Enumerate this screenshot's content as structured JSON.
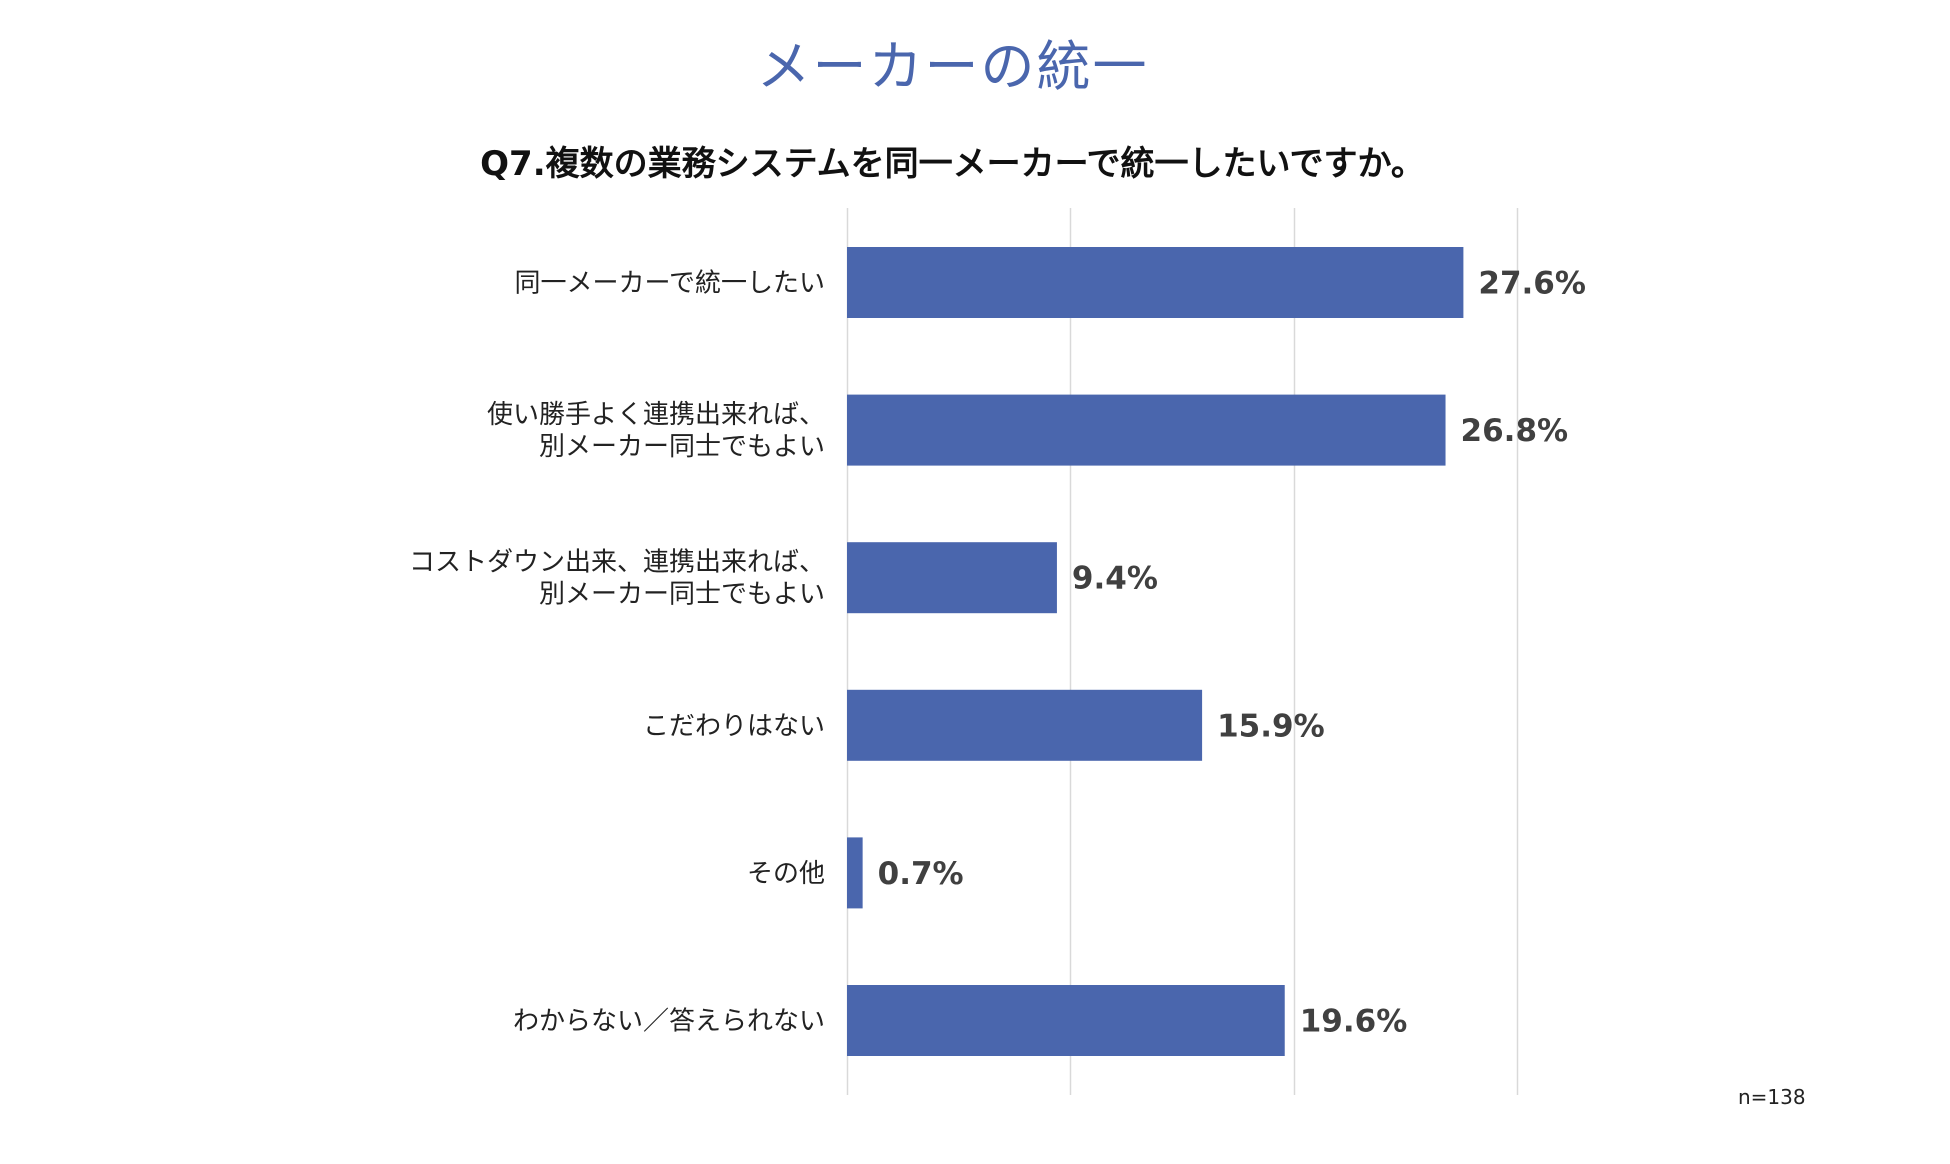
{
  "page": {
    "title": "メーカーの統一",
    "sample_size": "n=138"
  },
  "colors": {
    "title": "#4a66ad",
    "bar": "#4a66ad",
    "grid": "#d9d9d9"
  },
  "chart_data": {
    "type": "bar",
    "orientation": "horizontal",
    "title": "Q7.複数の業務システムを同一メーカーで統一したいですか。",
    "categories": [
      [
        "同一メーカーで統一したい"
      ],
      [
        "使い勝手よく連携出来れば、",
        "別メーカー同士でもよい"
      ],
      [
        "コストダウン出来、連携出来れば、",
        "別メーカー同士でもよい"
      ],
      [
        "こだわりはない"
      ],
      [
        "その他"
      ],
      [
        "わからない／答えられない"
      ]
    ],
    "values": [
      27.6,
      26.8,
      9.4,
      15.9,
      0.7,
      19.6
    ],
    "value_labels": [
      "27.6%",
      "26.8%",
      "9.4%",
      "15.9%",
      "0.7%",
      "19.6%"
    ],
    "xlim": [
      0,
      30
    ],
    "grid": true
  }
}
